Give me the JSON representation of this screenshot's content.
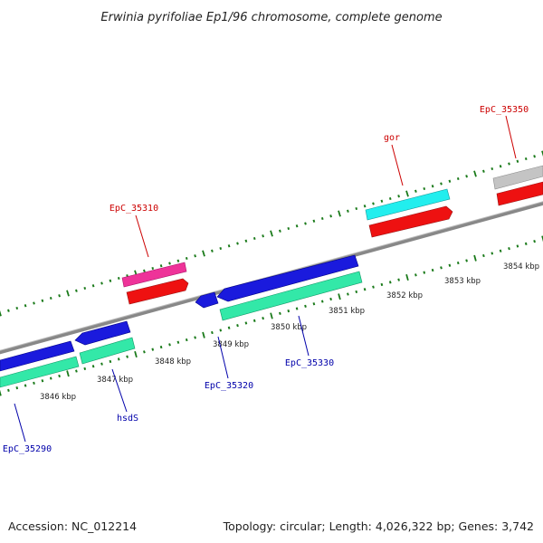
{
  "title": "Erwinia pyrifoliae Ep1/96 chromosome, complete genome",
  "footer": {
    "accession": "Accession: NC_012214",
    "summary": "Topology: circular; Length: 4,026,322 bp; Genes: 3,742"
  },
  "ruler": [
    {
      "label": "3846 kbp"
    },
    {
      "label": "3847 kbp"
    },
    {
      "label": "3848 kbp"
    },
    {
      "label": "3849 kbp"
    },
    {
      "label": "3850 kbp"
    },
    {
      "label": "3851 kbp"
    },
    {
      "label": "3852 kbp"
    },
    {
      "label": "3853 kbp"
    },
    {
      "label": "3854 kbp"
    }
  ],
  "gene_labels": [
    {
      "text": "EpC_35310",
      "color": "#cc0000"
    },
    {
      "text": "gor",
      "color": "#cc0000"
    },
    {
      "text": "EpC_35350",
      "color": "#cc0000"
    },
    {
      "text": "EpC_35290",
      "color": "#0000aa"
    },
    {
      "text": "hsdS",
      "color": "#0000aa"
    },
    {
      "text": "EpC_35320",
      "color": "#0000aa"
    },
    {
      "text": "EpC_35330",
      "color": "#0000aa"
    }
  ],
  "colors": {
    "forward_cds": "#ee1111",
    "reverse_cds": "#1a1add",
    "rna_green": "#33e8a8",
    "cyan": "#22eeee",
    "magenta": "#ee3399",
    "gray": "#c4c4c4",
    "backbone": "#888888",
    "ticks": "#1a7a1a"
  }
}
